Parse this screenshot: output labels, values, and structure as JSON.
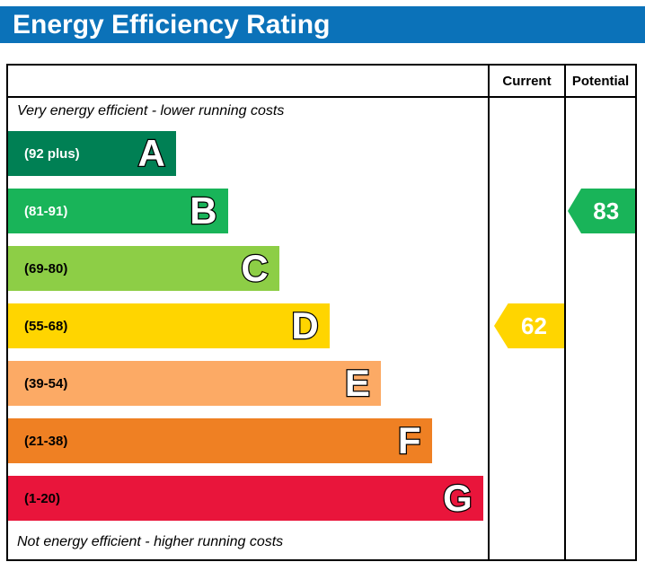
{
  "header": {
    "title": "Energy Efficiency Rating",
    "bg_color": "#0b72b9"
  },
  "columns": {
    "current": "Current",
    "potential": "Potential"
  },
  "captions": {
    "top": "Very energy efficient - lower running costs",
    "bottom": "Not energy efficient - higher running costs"
  },
  "bands": [
    {
      "letter": "A",
      "range": "(92 plus)",
      "color": "#008054",
      "width_pct": 35,
      "text_color": "#ffffff"
    },
    {
      "letter": "B",
      "range": "(81-91)",
      "color": "#19b459",
      "width_pct": 45.8,
      "text_color": "#ffffff"
    },
    {
      "letter": "C",
      "range": "(69-80)",
      "color": "#8dce46",
      "width_pct": 56.5,
      "text_color": "#000000"
    },
    {
      "letter": "D",
      "range": "(55-68)",
      "color": "#ffd500",
      "width_pct": 67,
      "text_color": "#000000"
    },
    {
      "letter": "E",
      "range": "(39-54)",
      "color": "#fcaa65",
      "width_pct": 77.7,
      "text_color": "#000000"
    },
    {
      "letter": "F",
      "range": "(21-38)",
      "color": "#ef8023",
      "width_pct": 88.3,
      "text_color": "#000000"
    },
    {
      "letter": "G",
      "range": "(1-20)",
      "color": "#e9153b",
      "width_pct": 99,
      "text_color": "#000000"
    }
  ],
  "current": {
    "value": "62",
    "band": "D",
    "color": "#ffd500"
  },
  "potential": {
    "value": "83",
    "band": "B",
    "color": "#19b459"
  },
  "chart_data": {
    "type": "bar",
    "title": "Energy Efficiency Rating",
    "categories": [
      "A (92 plus)",
      "B (81-91)",
      "C (69-80)",
      "D (55-68)",
      "E (39-54)",
      "F (21-38)",
      "G (1-20)"
    ],
    "band_colors": [
      "#008054",
      "#19b459",
      "#8dce46",
      "#ffd500",
      "#fcaa65",
      "#ef8023",
      "#e9153b"
    ],
    "bar_relative_widths_pct": [
      35,
      45.8,
      56.5,
      67,
      77.7,
      88.3,
      99
    ],
    "columns": [
      "Current",
      "Potential"
    ],
    "ratings": {
      "current": 62,
      "current_band": "D",
      "potential": 83,
      "potential_band": "B"
    },
    "annotations": [
      "Very energy efficient - lower running costs",
      "Not energy efficient - higher running costs"
    ]
  }
}
